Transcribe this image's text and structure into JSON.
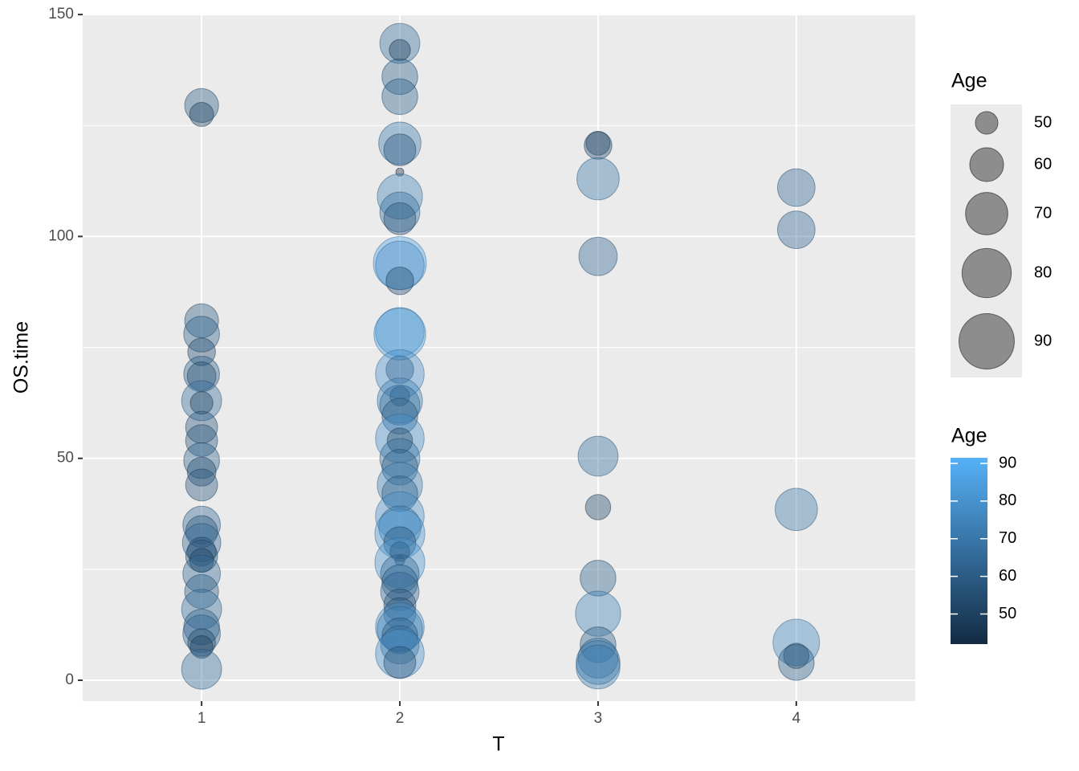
{
  "chart_data": {
    "type": "scatter",
    "x_label": "T",
    "y_label": "OS.time",
    "xlim": [
      0.4,
      4.6
    ],
    "ylim": [
      -4.7,
      150.2
    ],
    "xticks": [
      1,
      2,
      3,
      4
    ],
    "yticks": [
      0,
      50,
      100,
      150
    ],
    "y_minor_ticks": [
      25,
      75,
      125
    ],
    "grid": true,
    "series": [
      {
        "x": [
          1,
          1,
          1,
          1,
          1,
          1,
          1,
          1,
          1,
          1,
          1,
          1,
          1,
          1,
          1,
          1,
          1,
          1,
          1,
          1,
          1,
          1,
          1,
          1,
          1,
          1,
          1,
          1,
          2,
          2,
          2,
          2,
          2,
          2,
          2,
          2,
          2,
          2,
          2,
          2,
          2,
          2,
          2,
          2,
          2,
          2,
          2,
          2,
          2,
          2,
          2,
          2,
          2,
          2,
          2,
          2,
          2,
          2,
          2,
          2,
          2,
          2,
          2,
          2,
          2,
          2,
          2,
          2,
          2,
          2,
          2,
          2,
          2,
          3,
          3,
          3,
          3,
          3,
          3,
          3,
          3,
          3,
          3,
          3,
          3,
          4,
          4,
          4,
          4,
          4,
          4
        ],
        "values": [
          129.5,
          127.5,
          81,
          78,
          74,
          69,
          68.5,
          63,
          62.5,
          57,
          54,
          49.5,
          47,
          44,
          35,
          33.5,
          31,
          29,
          28,
          27,
          24,
          20,
          16,
          12,
          10.5,
          8.5,
          7.5,
          2.5,
          143.5,
          142,
          136,
          131.5,
          121,
          119.5,
          114.5,
          109,
          105.5,
          104,
          94,
          93.5,
          90,
          78.5,
          78,
          70,
          69,
          64,
          63,
          62,
          59.5,
          54.5,
          54,
          50,
          48,
          44,
          42,
          37,
          34.5,
          33,
          31,
          29,
          27,
          26.5,
          24,
          22,
          20,
          17,
          15,
          12,
          11.5,
          10,
          8,
          6,
          4,
          121,
          120.5,
          113,
          95.5,
          50.5,
          39,
          23,
          15,
          8,
          5,
          4,
          3,
          111,
          101.5,
          38.5,
          8.5,
          5.5,
          4
        ],
        "sizes": [
          60,
          51,
          60,
          62,
          54,
          62,
          55,
          67,
          50,
          58,
          58,
          62,
          55,
          58,
          64,
          58,
          65,
          55,
          58,
          51,
          64,
          60,
          67,
          62,
          64,
          54,
          50,
          67,
          67,
          49,
          62,
          62,
          70,
          58,
          43,
          74,
          67,
          58,
          86,
          79,
          54,
          79,
          84,
          54,
          79,
          48,
          74,
          67,
          62,
          79,
          52,
          67,
          62,
          74,
          62,
          79,
          70,
          81,
          58,
          48,
          43.5,
          81,
          65,
          62,
          65,
          58,
          58,
          79,
          74,
          62,
          65,
          79,
          58,
          51,
          54,
          70,
          65,
          67,
          52,
          62,
          74,
          62,
          67,
          72,
          72,
          64,
          64,
          70,
          76,
          52,
          62
        ]
      }
    ],
    "size_legend": {
      "title": "Age",
      "breaks": [
        50,
        60,
        70,
        80,
        90
      ]
    },
    "color_legend": {
      "title": "Age",
      "breaks": [
        50,
        60,
        70,
        80,
        90
      ],
      "limits": [
        42,
        91.5
      ],
      "low": "#132B43",
      "high": "#56B1F7"
    }
  }
}
